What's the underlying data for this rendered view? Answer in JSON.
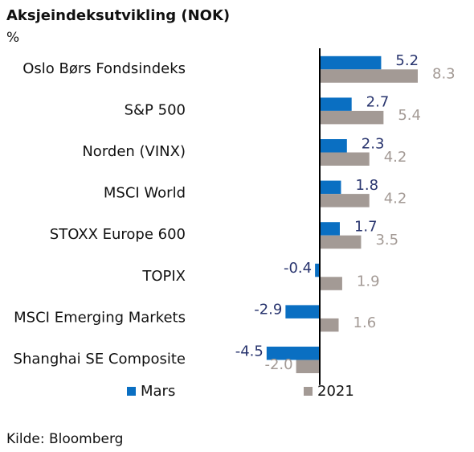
{
  "chart_data": {
    "type": "bar",
    "orientation": "horizontal",
    "title": "Aksjeindeksutvikling (NOK)",
    "unit_label": "%",
    "source": "Kilde: Bloomberg",
    "categories": [
      "Oslo Børs Fondsindeks",
      "S&P 500",
      "Norden (VINX)",
      "MSCI World",
      "STOXX Europe 600",
      "TOPIX",
      "MSCI Emerging Markets",
      "Shanghai SE Composite"
    ],
    "series": [
      {
        "name": "Mars",
        "color": "#0a6fc2",
        "label_color": "#28346e",
        "values": [
          5.2,
          2.7,
          2.3,
          1.8,
          1.7,
          -0.4,
          -2.9,
          -4.5
        ],
        "value_labels": [
          "5.2",
          "2.7",
          "2.3",
          "1.8",
          "1.7",
          "-0.4",
          "-2.9",
          "-4.5"
        ]
      },
      {
        "name": "2021",
        "color": "#a39a95",
        "label_color": "#a39a95",
        "values": [
          8.3,
          5.4,
          4.2,
          4.2,
          3.5,
          1.9,
          1.6,
          -2.0
        ],
        "value_labels": [
          "8.3",
          "5.4",
          "4.2",
          "4.2",
          "3.5",
          "1.9",
          "1.6",
          "-2.0"
        ]
      }
    ],
    "legend": "bottom"
  }
}
